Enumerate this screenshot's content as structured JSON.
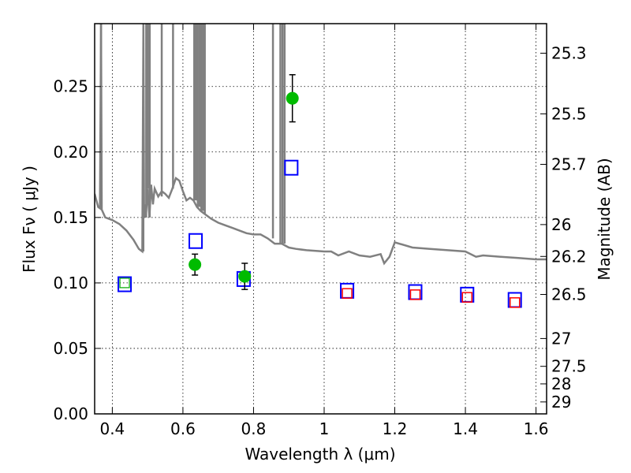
{
  "chart_data": {
    "type": "scatter",
    "xlabel": "Wavelength  λ (μm)",
    "ylabel": "Flux  Fν  ( μJy )",
    "y2label": "Magnitude (AB)",
    "xlim": [
      0.35,
      1.63
    ],
    "ylim": [
      0.0,
      0.298
    ],
    "grid": true,
    "x_ticks": [
      0.4,
      0.6,
      0.8,
      1.0,
      1.2,
      1.4,
      1.6
    ],
    "x_tick_labels": [
      "0.4",
      "0.6",
      "0.8",
      "1",
      "1.2",
      "1.4",
      "1.6"
    ],
    "y_ticks": [
      0.0,
      0.05,
      0.1,
      0.15,
      0.2,
      0.25
    ],
    "y_tick_labels": [
      "0.00",
      "0.05",
      "0.10",
      "0.15",
      "0.20",
      "0.25"
    ],
    "y2_ticks": [
      25.3,
      25.5,
      25.7,
      26,
      26.2,
      26.5,
      27,
      27.5,
      28,
      29
    ],
    "y2_tick_labels": [
      "25.3",
      "25.5",
      "25.7",
      "26",
      "26.2",
      "26.5",
      "27",
      "27.5",
      "28",
      "29"
    ],
    "colors": {
      "model": "#808080",
      "detection": "#00bb00",
      "model_box": "#0000ff",
      "upper_box": "#ff0000",
      "green_box": "#00aa00",
      "errorbar": "#000000",
      "grid": "#000000"
    },
    "series": [
      {
        "type": "line",
        "x": [
          0.35,
          0.355,
          0.36,
          0.365,
          0.368,
          0.37,
          0.38,
          0.4,
          0.42,
          0.44,
          0.46,
          0.475,
          0.48,
          0.485,
          0.488,
          0.49,
          0.492,
          0.495,
          0.5,
          0.505,
          0.51,
          0.515,
          0.52,
          0.53,
          0.54,
          0.55,
          0.56,
          0.57,
          0.58,
          0.59,
          0.6,
          0.61,
          0.62,
          0.63,
          0.64,
          0.65,
          0.66,
          0.68,
          0.7,
          0.72,
          0.74,
          0.76,
          0.78,
          0.8,
          0.82,
          0.84,
          0.86,
          0.88,
          0.9,
          0.92,
          0.95,
          1.0,
          1.02,
          1.04,
          1.07,
          1.1,
          1.13,
          1.16,
          1.17,
          1.185,
          1.2,
          1.25,
          1.3,
          1.35,
          1.4,
          1.43,
          1.45,
          1.5,
          1.55,
          1.6,
          1.63
        ],
        "y": [
          0.168,
          0.163,
          0.158,
          0.157,
          0.298,
          0.156,
          0.15,
          0.148,
          0.145,
          0.14,
          0.133,
          0.126,
          0.125,
          0.124,
          0.298,
          0.15,
          0.16,
          0.15,
          0.172,
          0.15,
          0.175,
          0.16,
          0.172,
          0.166,
          0.17,
          0.168,
          0.165,
          0.172,
          0.18,
          0.178,
          0.17,
          0.163,
          0.165,
          0.163,
          0.158,
          0.155,
          0.153,
          0.149,
          0.146,
          0.144,
          0.142,
          0.14,
          0.138,
          0.137,
          0.137,
          0.134,
          0.13,
          0.13,
          0.127,
          0.126,
          0.125,
          0.124,
          0.124,
          0.121,
          0.124,
          0.121,
          0.12,
          0.122,
          0.115,
          0.12,
          0.131,
          0.127,
          0.126,
          0.125,
          0.124,
          0.12,
          0.121,
          0.12,
          0.119,
          0.118,
          0.118
        ]
      },
      {
        "type": "spikes",
        "x": [
          0.368,
          0.488,
          0.496,
          0.501,
          0.506,
          0.54,
          0.572,
          0.632,
          0.637,
          0.642,
          0.647,
          0.652,
          0.657,
          0.662,
          0.855,
          0.876,
          0.882,
          0.888
        ]
      },
      {
        "type": "detections",
        "x": [
          0.634,
          0.775,
          0.91
        ],
        "y": [
          0.114,
          0.105,
          0.241
        ],
        "yerr": [
          0.008,
          0.01,
          0.018
        ]
      },
      {
        "type": "model_photometry",
        "x": [
          0.435,
          0.636,
          0.772,
          0.907,
          1.065,
          1.258,
          1.405,
          1.54
        ],
        "y": [
          0.099,
          0.132,
          0.103,
          0.188,
          0.094,
          0.093,
          0.091,
          0.087
        ]
      },
      {
        "type": "upper_limits",
        "x": [
          1.065,
          1.258,
          1.405,
          1.54
        ],
        "y": [
          0.092,
          0.091,
          0.089,
          0.085
        ]
      },
      {
        "type": "green_limit",
        "x": [
          0.435
        ],
        "y": [
          0.1
        ]
      }
    ]
  }
}
